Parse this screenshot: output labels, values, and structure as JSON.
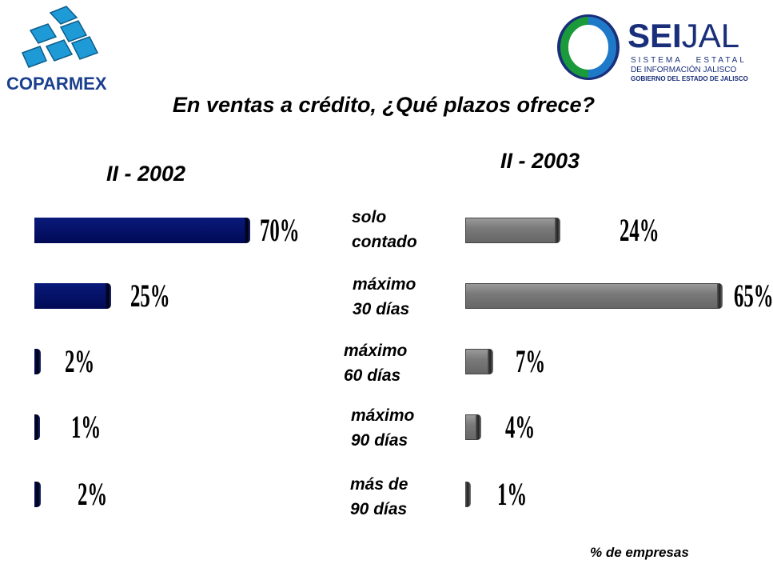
{
  "logos": {
    "left": {
      "name": "COPARMEX"
    },
    "right": {
      "name_bold": "SEI",
      "name_rest": "JAL",
      "line1": "SISTEMA   ESTATAL",
      "line2": "DE INFORMACIÓN JALISCO",
      "line3": "GOBIERNO DEL ESTADO DE JALISCO"
    }
  },
  "title": "En ventas a crédito, ¿Qué plazos ofrece?",
  "footnote": "% de empresas",
  "colors": {
    "left_series": "#000a60",
    "right_series": "#7f7f7f"
  },
  "chart_data": [
    {
      "type": "bar",
      "orientation": "horizontal",
      "title": "II - 2002",
      "categories": [
        "solo contado",
        "máximo 30 días",
        "máximo 60 días",
        "máximo 90 días",
        "más de 90 días"
      ],
      "values": [
        70,
        25,
        2,
        1,
        2
      ],
      "value_labels": [
        "70%",
        "25%",
        "2%",
        "1%",
        "2%"
      ],
      "unit": "%"
    },
    {
      "type": "bar",
      "orientation": "horizontal",
      "title": "II - 2003",
      "categories": [
        "solo contado",
        "máximo 30 días",
        "máximo 60 días",
        "máximo 90 días",
        "más de 90 días"
      ],
      "values": [
        24,
        65,
        7,
        4,
        1
      ],
      "value_labels": [
        "24%",
        "65%",
        "7%",
        "4%",
        "1%"
      ],
      "unit": "%"
    }
  ],
  "category_lines": [
    [
      "solo",
      "contado"
    ],
    [
      "máximo",
      "30 días"
    ],
    [
      "máximo",
      "60 días"
    ],
    [
      "máximo",
      "90 días"
    ],
    [
      "más de",
      "90 días"
    ]
  ]
}
